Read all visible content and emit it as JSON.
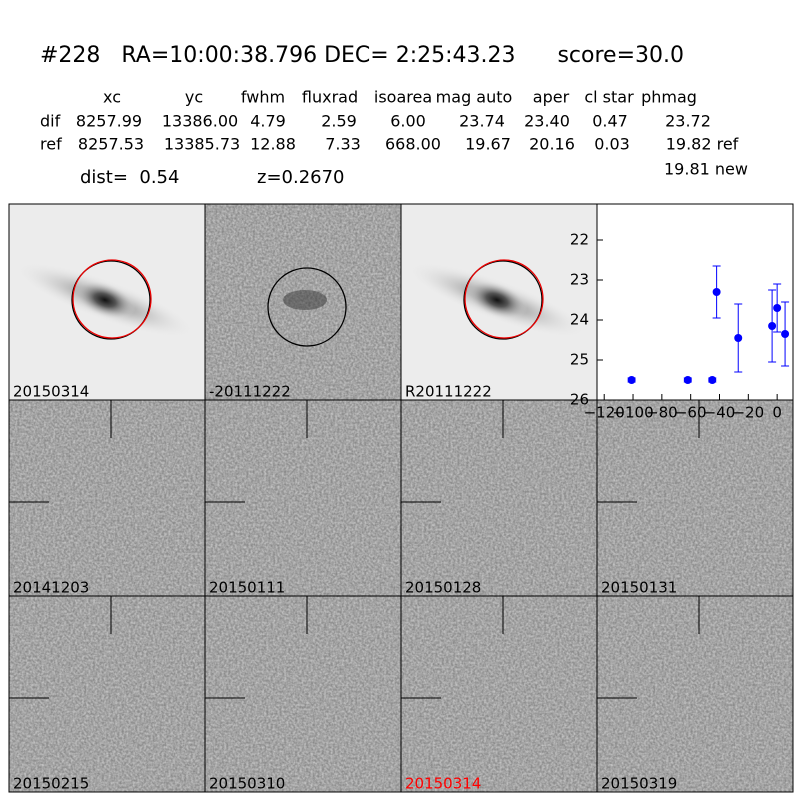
{
  "header": {
    "title": "#228   RA=10:00:38.796 DEC= 2:25:43.23      score=30.0"
  },
  "table": {
    "columns": [
      "xc",
      "yc",
      "fwhm",
      "fluxrad",
      "isoarea",
      "mag auto",
      "aper",
      "cl star",
      "phmag"
    ],
    "rows": [
      {
        "label": "dif",
        "cells": [
          "8257.99",
          "13386.00",
          "4.79",
          "2.59",
          "6.00",
          "23.74",
          "23.40",
          "0.47",
          "23.72"
        ]
      },
      {
        "label": "ref",
        "cells": [
          "8257.53",
          "13385.73",
          "12.88",
          "7.33",
          "668.00",
          "19.67",
          "20.16",
          "0.03",
          "19.82 ref"
        ]
      }
    ],
    "extra": "19.81 new"
  },
  "info": {
    "dist": "dist=  0.54",
    "z": "z=0.2670"
  },
  "panels": [
    {
      "label": "20150314",
      "color": "#000000"
    },
    {
      "label": "-20111222",
      "color": "#000000"
    },
    {
      "label": "R20111222",
      "color": "#000000"
    },
    {
      "label": "20141203",
      "color": "#000000"
    },
    {
      "label": "20150111",
      "color": "#000000"
    },
    {
      "label": "20150128",
      "color": "#000000"
    },
    {
      "label": "20150131",
      "color": "#000000"
    },
    {
      "label": "20150215",
      "color": "#000000"
    },
    {
      "label": "20150310",
      "color": "#000000"
    },
    {
      "label": "20150314",
      "color": "#ff0000"
    },
    {
      "label": "20150319",
      "color": "#000000"
    }
  ],
  "chart_data": {
    "type": "scatter",
    "xlim": [
      -125,
      11
    ],
    "ylim": [
      26,
      21.1
    ],
    "xticks": [
      {
        "value": -120,
        "label": "−120"
      },
      {
        "value": -100,
        "label": "−100"
      },
      {
        "value": -80,
        "label": "−80"
      },
      {
        "value": -60,
        "label": "−60"
      },
      {
        "value": -40,
        "label": "−40"
      },
      {
        "value": -20,
        "label": "−20"
      },
      0
    ],
    "yticks": [
      22,
      23,
      24,
      25,
      26
    ],
    "series": [
      {
        "color": "#0000ff",
        "x": [
          -101,
          -62,
          -45,
          -42,
          -27,
          -3.5,
          0,
          5.5
        ],
        "y": [
          25.5,
          25.5,
          25.5,
          23.3,
          24.45,
          24.15,
          23.7,
          24.35
        ],
        "yerr": [
          0.05,
          0.05,
          0.05,
          0.65,
          0.85,
          0.9,
          0.6,
          0.8
        ]
      }
    ]
  }
}
